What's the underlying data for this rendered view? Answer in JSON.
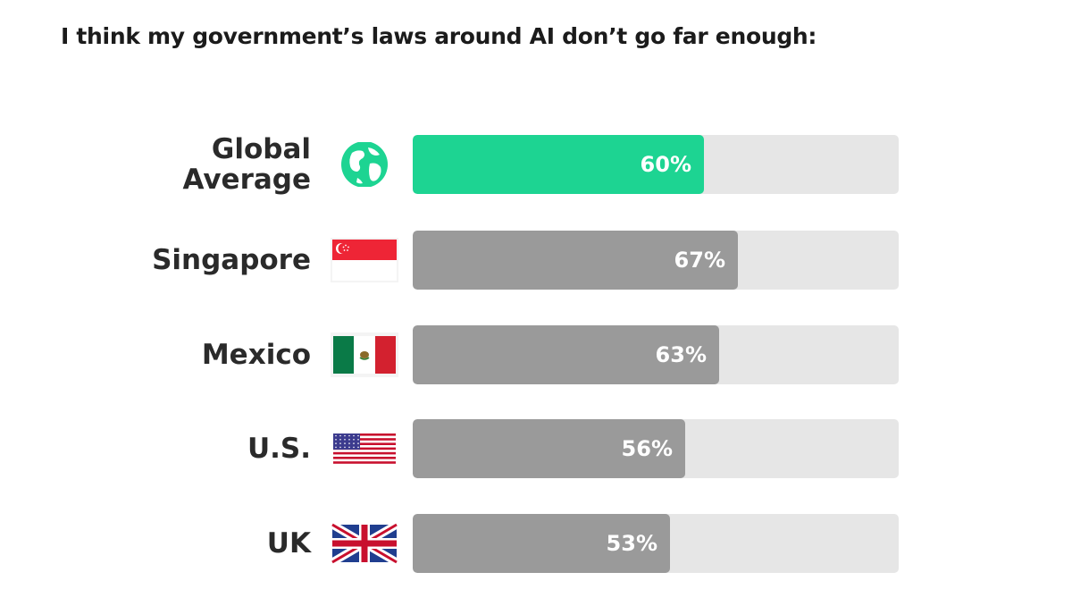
{
  "chart_data": {
    "type": "bar",
    "orientation": "horizontal",
    "title": "I think my government’s laws around AI don’t go far enough:",
    "categories": [
      "Global Average",
      "Singapore",
      "Mexico",
      "U.S.",
      "UK"
    ],
    "label_lines": [
      [
        "Global",
        "Average"
      ],
      [
        "Singapore"
      ],
      [
        "Mexico"
      ],
      [
        "U.S."
      ],
      [
        "UK"
      ]
    ],
    "values": [
      60,
      67,
      63,
      56,
      53
    ],
    "value_labels": [
      "60%",
      "67%",
      "63%",
      "56%",
      "53%"
    ],
    "icons": [
      "globe-icon",
      "singapore-flag-icon",
      "mexico-flag-icon",
      "us-flag-icon",
      "uk-flag-icon"
    ],
    "xlim": [
      0,
      100
    ],
    "unit": "%",
    "colors": {
      "highlight": "#1dd492",
      "bar": "#9a9a9a",
      "track": "#e6e6e6"
    }
  }
}
